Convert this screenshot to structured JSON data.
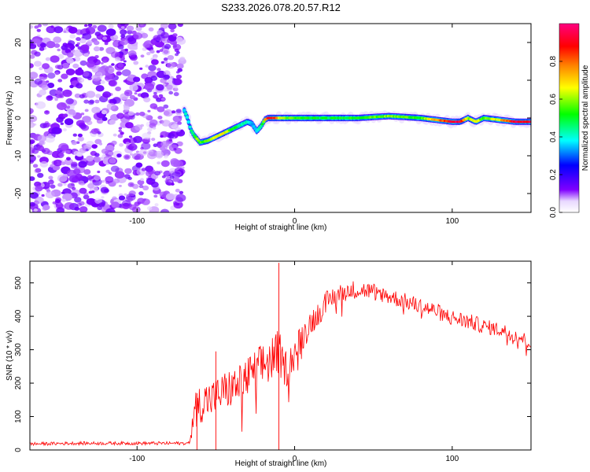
{
  "title": "S233.2026.078.20.57.R12",
  "chart_data": [
    {
      "type": "heatmap",
      "xlabel": "Height of straight line (km)",
      "ylabel": "Frequency (Hz)",
      "xlim": [
        -168,
        150
      ],
      "ylim": [
        -25,
        25
      ],
      "x_ticks": [
        -100,
        0,
        100
      ],
      "y_ticks": [
        -20,
        -10,
        0,
        10,
        20
      ],
      "x_tick_labels": [
        "-100",
        "0",
        "100"
      ],
      "y_tick_labels": [
        "-20",
        "-10",
        "0",
        "10",
        "20"
      ],
      "noise_region_x": [
        -168,
        -71
      ],
      "colorbar": {
        "label": "Normalized spectral amplitude",
        "range": [
          0,
          1
        ],
        "ticks": [
          0.0,
          0.2,
          0.4,
          0.6,
          0.8
        ],
        "tick_labels": [
          "0.0",
          "0.2",
          "0.4",
          "0.6",
          "0.8"
        ],
        "colormap": [
          "#ffffff",
          "#8000ff",
          "#0000ff",
          "#00ffff",
          "#00ff00",
          "#ffff00",
          "#ff8000",
          "#ff0000",
          "#ff00ff"
        ]
      },
      "signal_track": {
        "x": [
          -70,
          -68,
          -66,
          -64,
          -62,
          -60,
          -55,
          -50,
          -45,
          -40,
          -35,
          -30,
          -27,
          -24,
          -21,
          -19,
          -17,
          -15,
          -12,
          -9,
          0,
          20,
          40,
          60,
          80,
          100,
          105,
          110,
          115,
          120,
          130,
          140,
          150
        ],
        "freq": [
          2,
          0,
          -3,
          -4.5,
          -5.5,
          -6.5,
          -6,
          -5,
          -4,
          -3,
          -2,
          -1,
          -1.5,
          -3.5,
          -2,
          -0.5,
          0,
          0,
          0,
          0,
          0,
          0,
          0,
          0.5,
          0,
          -1,
          -1,
          0,
          -1,
          0,
          -0.5,
          -1,
          -1
        ],
        "amp": [
          0.4,
          0.4,
          0.45,
          0.5,
          0.6,
          0.55,
          0.6,
          0.65,
          0.7,
          0.55,
          0.45,
          0.45,
          0.35,
          0.35,
          0.5,
          0.7,
          0.9,
          0.95,
          0.85,
          0.65,
          0.55,
          0.5,
          0.55,
          0.6,
          0.55,
          0.95,
          0.95,
          0.6,
          0.7,
          0.55,
          0.7,
          0.95,
          0.95
        ]
      }
    },
    {
      "type": "line",
      "xlabel": "Height of straight line (km)",
      "ylabel": "SNR (10 * v/v)",
      "xlim": [
        -168,
        150
      ],
      "ylim": [
        0,
        565
      ],
      "x_ticks": [
        -100,
        0,
        100
      ],
      "y_ticks": [
        0,
        100,
        200,
        300,
        400,
        500
      ],
      "x_tick_labels": [
        "-100",
        "0",
        "100"
      ],
      "y_tick_labels": [
        "0",
        "100",
        "200",
        "300",
        "400",
        "500"
      ],
      "color": "#ff0000",
      "series": [
        {
          "name": "SNR",
          "x": [
            -168,
            -140,
            -100,
            -80,
            -67,
            -63,
            -60,
            -55,
            -50,
            -45,
            -40,
            -35,
            -30,
            -25,
            -20,
            -15,
            -12,
            -10,
            -8,
            -5,
            0,
            5,
            10,
            15,
            20,
            25,
            30,
            35,
            40,
            50,
            60,
            70,
            80,
            90,
            100,
            110,
            120,
            130,
            140,
            150
          ],
          "y": [
            18,
            20,
            20,
            20,
            20,
            120,
            140,
            150,
            160,
            175,
            185,
            195,
            215,
            235,
            255,
            270,
            280,
            300,
            255,
            245,
            290,
            340,
            380,
            410,
            440,
            460,
            470,
            480,
            480,
            475,
            460,
            445,
            430,
            415,
            395,
            385,
            370,
            360,
            345,
            320
          ],
          "noise_amplitude": [
            5,
            5,
            5,
            5,
            5,
            55,
            60,
            60,
            55,
            60,
            60,
            60,
            65,
            65,
            70,
            75,
            70,
            70,
            60,
            55,
            50,
            45,
            40,
            38,
            35,
            32,
            30,
            28,
            28,
            25,
            25,
            25,
            25,
            25,
            25,
            25,
            22,
            22,
            22,
            22
          ]
        }
      ],
      "spikes": [
        {
          "x": -62,
          "y": 170
        },
        {
          "x": -50,
          "y": 295
        },
        {
          "x": -10,
          "y": 560
        }
      ]
    }
  ]
}
